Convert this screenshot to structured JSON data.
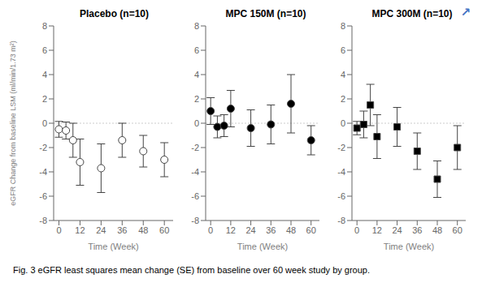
{
  "chart_data": [
    {
      "type": "scatter",
      "title": "Placebo (n=10)",
      "x_label": "Time (Week)",
      "y_label": "eGFR Change from baseline LSM (ml/min/1.73 m²)",
      "xlim": [
        -3,
        65
      ],
      "xticks": [
        0,
        12,
        24,
        36,
        48,
        60
      ],
      "ylim": [
        -8,
        8
      ],
      "yticks": [
        -8,
        -6,
        -4,
        -2,
        0,
        2,
        4,
        6,
        8
      ],
      "grid": false,
      "color": "#444444",
      "series": [
        {
          "marker": "circle",
          "color": "#ffffff",
          "x": [
            0,
            4,
            8,
            12,
            24,
            36,
            48,
            60
          ],
          "values": [
            -0.5,
            -0.6,
            -1.4,
            -3.2,
            -3.7,
            -1.4,
            -2.3,
            -3.0
          ],
          "errors": [
            0.65,
            0.7,
            1.4,
            1.9,
            2.0,
            1.4,
            1.3,
            1.4
          ]
        }
      ]
    },
    {
      "type": "scatter",
      "title": "MPC 150M (n=10)",
      "x_label": "Time (Week)",
      "xlim": [
        -3,
        65
      ],
      "xticks": [
        0,
        12,
        24,
        36,
        48,
        60
      ],
      "ylim": [
        -8,
        8
      ],
      "yticks": [
        -8,
        -6,
        -4,
        -2,
        0,
        2,
        4,
        6,
        8
      ],
      "grid": false,
      "color": "#444444",
      "series": [
        {
          "marker": "circle",
          "color": "#000000",
          "x": [
            0,
            4,
            8,
            12,
            24,
            36,
            48,
            60
          ],
          "values": [
            1.0,
            -0.3,
            -0.2,
            1.2,
            -0.4,
            -0.1,
            1.6,
            -1.4
          ],
          "errors": [
            1.1,
            0.9,
            0.9,
            1.5,
            1.5,
            1.6,
            2.4,
            1.2
          ]
        }
      ]
    },
    {
      "type": "scatter",
      "title": "MPC 300M (n=10)",
      "x_label": "Time (Week)",
      "xlim": [
        -3,
        65
      ],
      "xticks": [
        0,
        12,
        24,
        36,
        48,
        60
      ],
      "ylim": [
        -8,
        8
      ],
      "yticks": [
        -8,
        -6,
        -4,
        -2,
        0,
        2,
        4,
        6,
        8
      ],
      "grid": false,
      "color": "#444444",
      "annotations": [
        {
          "text": "↗",
          "color": "#4472c4"
        }
      ],
      "series": [
        {
          "marker": "square",
          "color": "#000000",
          "x": [
            0,
            4,
            8,
            12,
            24,
            36,
            48,
            60
          ],
          "values": [
            -0.4,
            -0.1,
            1.5,
            -1.1,
            -0.3,
            -2.3,
            -4.6,
            -2.0
          ],
          "errors": [
            0.55,
            1.1,
            1.7,
            1.8,
            1.6,
            1.5,
            1.5,
            1.8
          ]
        }
      ]
    }
  ],
  "caption": "Fig. 3  eGFR least squares mean change (SE) from baseline over 60 week study by group."
}
